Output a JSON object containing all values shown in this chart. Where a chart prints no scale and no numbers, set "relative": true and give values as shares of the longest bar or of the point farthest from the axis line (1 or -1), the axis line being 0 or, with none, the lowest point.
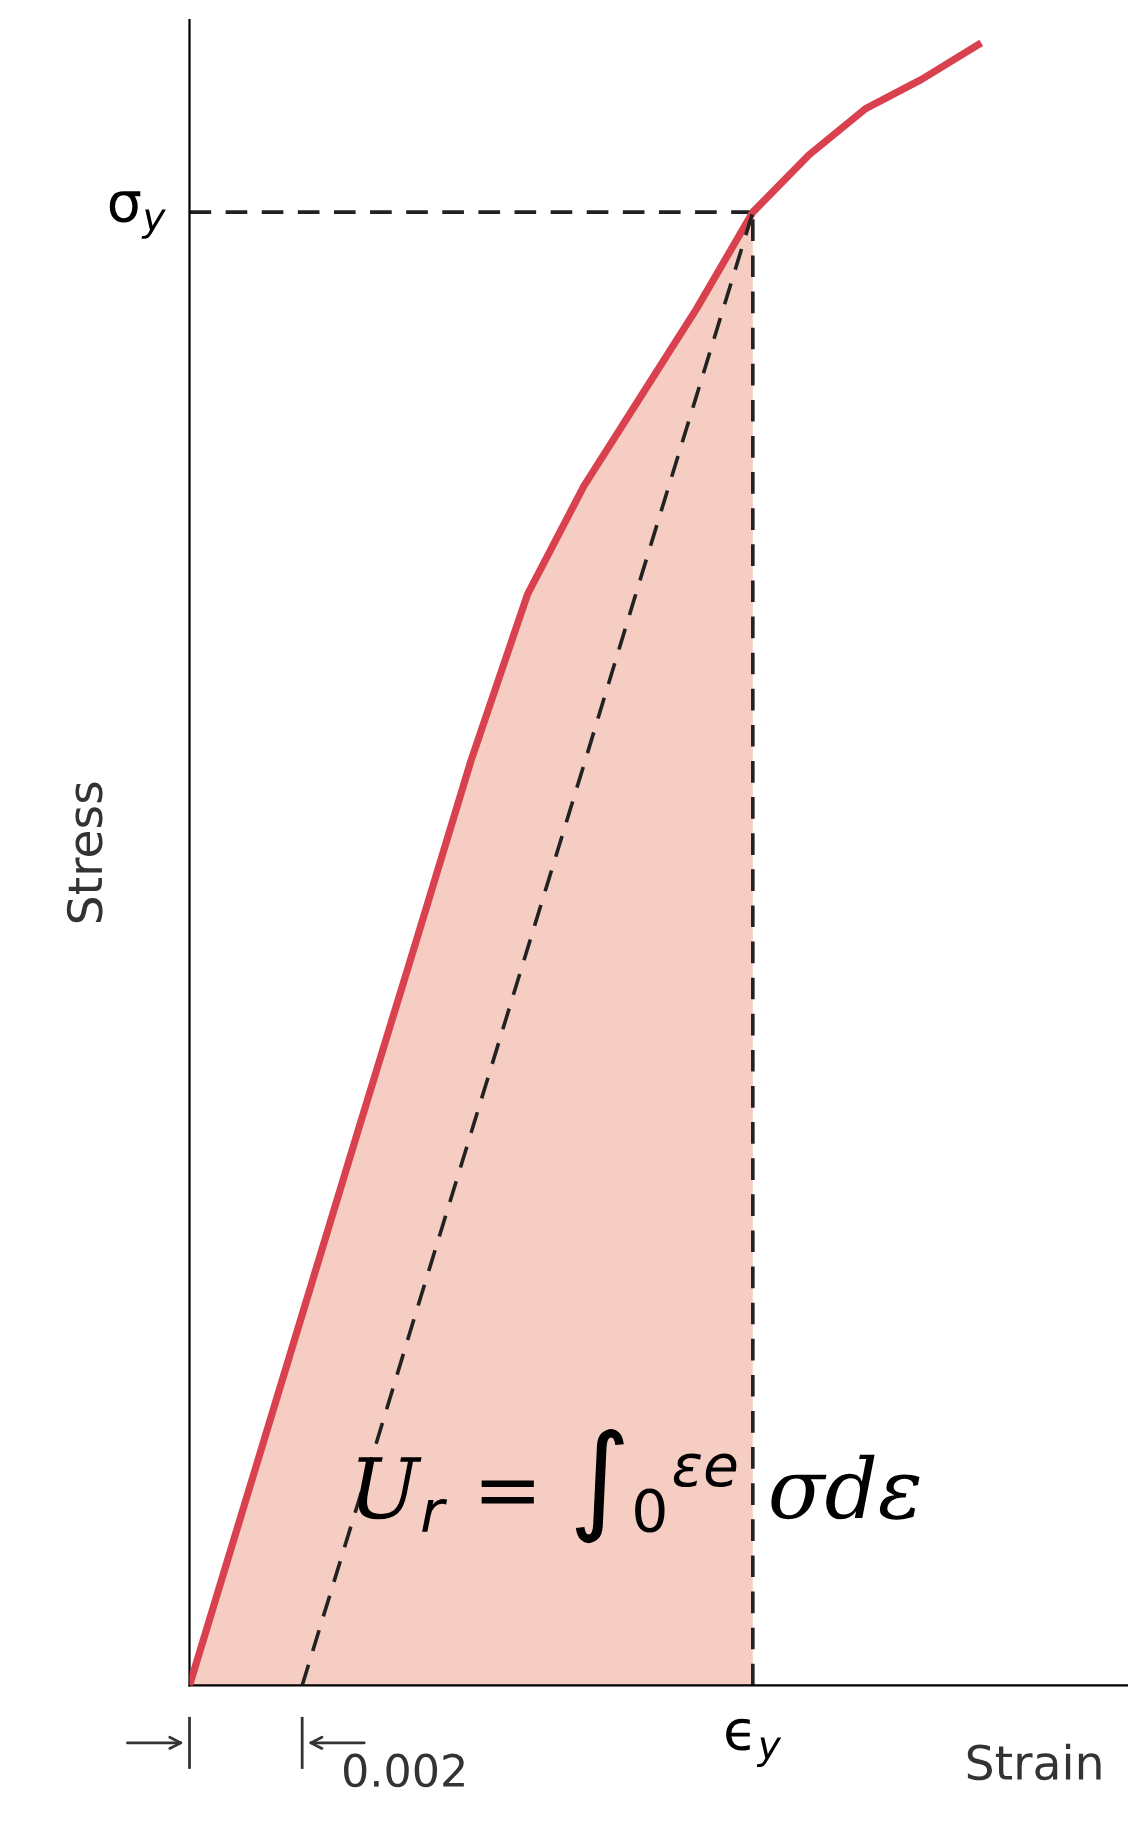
{
  "chart_data": {
    "type": "line",
    "relative": true,
    "xlabel": "Strain",
    "ylabel": "Stress",
    "categories": [
      null,
      null,
      null,
      null,
      null,
      null,
      null,
      null,
      null,
      null,
      null,
      null,
      null,
      null,
      null
    ],
    "series": [
      {
        "type": "area",
        "color": "#f5cdc2",
        "line_style": "dashed",
        "values": [
          0,
          0.113,
          0.226,
          0.339,
          0.451,
          0.564,
          0.665,
          0.731,
          0.785,
          0.839,
          0.898,
          null,
          null,
          null,
          null
        ]
      },
      {
        "color": "#d9414f",
        "line_style": "solid",
        "values": [
          0,
          0.113,
          0.226,
          0.339,
          0.451,
          0.564,
          0.665,
          0.731,
          0.785,
          0.839,
          0.898,
          0.933,
          0.961,
          0.979,
          1
        ]
      },
      {
        "color": "#222222",
        "line_style": "dashed",
        "values": [
          null,
          null,
          0,
          0.112,
          0.225,
          0.337,
          0.449,
          0.561,
          0.674,
          0.786,
          0.898,
          null,
          null,
          null,
          null
        ]
      }
    ],
    "ref_lines": [
      {
        "axis": "y",
        "value": 0.898,
        "label": "σ$_{y}$",
        "color": "#222222",
        "line_style": "dashed"
      }
    ],
    "annotations": [
      "0.002",
      "ϵ$_{y}$",
      "U$_{r}$ = ∫$_{0}$$^{εe}$ σdε"
    ]
  }
}
